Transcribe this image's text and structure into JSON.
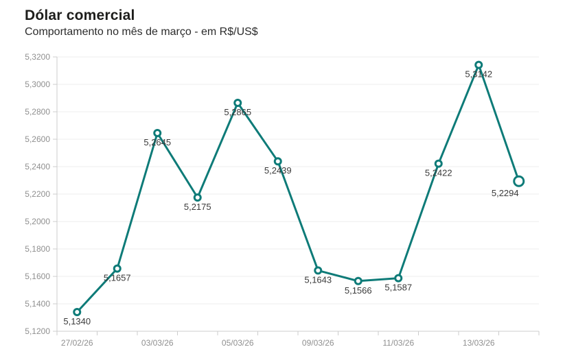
{
  "header": {
    "title": "Dólar comercial",
    "subtitle": "Comportamento no mês de março - em R$/US$"
  },
  "chart_data": {
    "type": "line",
    "title": "Dólar comercial",
    "subtitle": "Comportamento no mês de março - em R$/US$",
    "unit": "R$/US$",
    "series_name": "Dólar comercial",
    "points": [
      {
        "value": 5.134,
        "label": "5,1340",
        "label_dx": 0
      },
      {
        "value": 5.1657,
        "label": "5,1657",
        "label_dx": 0
      },
      {
        "value": 5.2645,
        "label": "5,2645",
        "label_dx": 0
      },
      {
        "value": 5.2175,
        "label": "5,2175",
        "label_dx": 0
      },
      {
        "value": 5.2865,
        "label": "5,2865",
        "label_dx": 0
      },
      {
        "value": 5.2439,
        "label": "5,2439",
        "label_dx": 0
      },
      {
        "value": 5.1643,
        "label": "5,1643",
        "label_dx": 0
      },
      {
        "value": 5.1566,
        "label": "5,1566",
        "label_dx": 0
      },
      {
        "value": 5.1587,
        "label": "5,1587",
        "label_dx": 0
      },
      {
        "value": 5.2422,
        "label": "5,2422",
        "label_dx": 0
      },
      {
        "value": 5.3142,
        "label": "5,3142",
        "label_dx": 0
      },
      {
        "value": 5.2294,
        "label": "5,2294",
        "label_dx": -20
      }
    ],
    "x_tick_labels": [
      "27/02/26",
      "03/03/26",
      "05/03/26",
      "09/03/26",
      "11/03/26",
      "13/03/26"
    ],
    "x_label_every": 2,
    "y_ticks": [
      5.12,
      5.14,
      5.16,
      5.18,
      5.2,
      5.22,
      5.24,
      5.26,
      5.28,
      5.3,
      5.32
    ],
    "y_tick_labels": [
      "5,1200",
      "5,1400",
      "5,1600",
      "5,1800",
      "5,2000",
      "5,2200",
      "5,2400",
      "5,2600",
      "5,2800",
      "5,3000",
      "5,3200"
    ],
    "ylim": [
      5.12,
      5.32
    ],
    "grid": true,
    "legend_position": "none",
    "colors": {
      "line": "#0e7b78",
      "marker_fill": "#ffffff",
      "grid_line": "#ececec",
      "axis_line": "#cccccc",
      "tick_label": "#8f8f8f",
      "value_label": "#3a3a3a"
    },
    "last_point_emphasis": true
  }
}
